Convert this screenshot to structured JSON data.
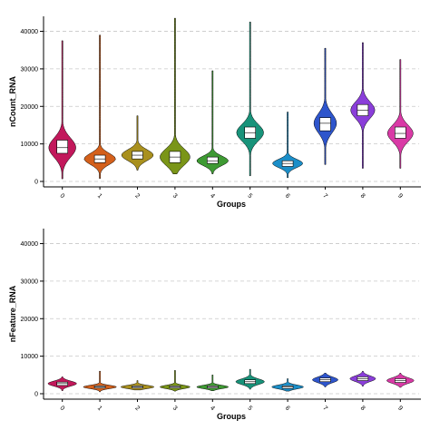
{
  "chart_data": [
    {
      "type": "violin",
      "ylabel": "nCount_RNA",
      "xlabel": "Groups",
      "ylim": [
        0,
        44000
      ],
      "yticks": [
        0,
        10000,
        20000,
        30000,
        40000
      ],
      "grid": true,
      "categories": [
        "0",
        "1",
        "2",
        "3",
        "4",
        "5",
        "6",
        "7",
        "8",
        "9"
      ],
      "colors": [
        "#C2185B",
        "#D4601B",
        "#A9901E",
        "#7A9518",
        "#3E9A33",
        "#18937A",
        "#1B8EC8",
        "#2E55CC",
        "#8A3ED9",
        "#D93AA6"
      ],
      "min": [
        700,
        800,
        3000,
        2000,
        2000,
        1500,
        1000,
        4500,
        3500,
        3500
      ],
      "q1": [
        7500,
        5000,
        6000,
        5000,
        4800,
        11500,
        4000,
        13500,
        17500,
        11500
      ],
      "median": [
        9000,
        6000,
        7000,
        6500,
        5500,
        13000,
        4800,
        15500,
        19000,
        12800
      ],
      "q3": [
        11000,
        7000,
        8000,
        8000,
        6500,
        14500,
        5500,
        17000,
        20500,
        14500
      ],
      "max": [
        37500,
        39000,
        17500,
        43500,
        29500,
        42500,
        18500,
        35500,
        37000,
        32500
      ],
      "half_width": [
        0.36,
        0.42,
        0.42,
        0.4,
        0.42,
        0.36,
        0.4,
        0.3,
        0.32,
        0.34
      ]
    },
    {
      "type": "violin",
      "ylabel": "nFeature_RNA",
      "xlabel": "Groups",
      "ylim": [
        0,
        44000
      ],
      "yticks": [
        0,
        10000,
        20000,
        30000,
        40000
      ],
      "grid": true,
      "categories": [
        "0",
        "1",
        "2",
        "3",
        "4",
        "5",
        "6",
        "7",
        "8",
        "9"
      ],
      "colors": [
        "#C2185B",
        "#D4601B",
        "#A9901E",
        "#7A9518",
        "#3E9A33",
        "#18937A",
        "#1B8EC8",
        "#2E55CC",
        "#8A3ED9",
        "#D93AA6"
      ],
      "min": [
        800,
        500,
        1000,
        700,
        800,
        1200,
        700,
        1800,
        2000,
        1700
      ],
      "q1": [
        2200,
        1500,
        1500,
        1500,
        1500,
        2700,
        1400,
        3200,
        3500,
        3000
      ],
      "median": [
        2700,
        1800,
        1800,
        1800,
        1800,
        3200,
        1800,
        3700,
        4000,
        3500
      ],
      "q3": [
        3100,
        2100,
        2100,
        2100,
        2100,
        3700,
        2100,
        4200,
        4500,
        4000
      ],
      "max": [
        4500,
        6000,
        3500,
        6200,
        5000,
        6500,
        4000,
        5500,
        6000,
        5500
      ],
      "half_width": [
        0.38,
        0.44,
        0.44,
        0.4,
        0.42,
        0.38,
        0.42,
        0.34,
        0.34,
        0.36
      ]
    }
  ]
}
